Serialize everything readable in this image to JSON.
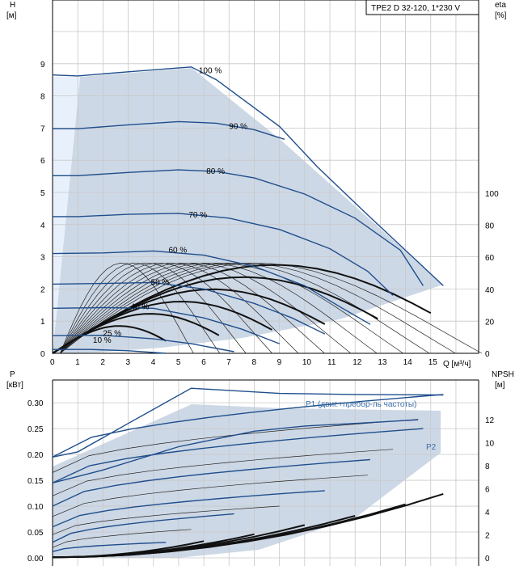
{
  "chart_data": [
    {
      "type": "line",
      "title": "TPE2 D 32-120, 1*230 V",
      "ylabel": "H",
      "ylabel_unit": "[м]",
      "y2label": "eta",
      "y2label_unit": "[%]",
      "xlabel": "Q [м³/ч]",
      "xlim": [
        0,
        16
      ],
      "ylim": [
        0,
        11
      ],
      "y2lim": [
        0,
        100
      ],
      "x_ticks": [
        "0",
        "1",
        "2",
        "3",
        "4",
        "5",
        "6",
        "7",
        "8",
        "9",
        "10",
        "11",
        "12",
        "13",
        "14",
        "15"
      ],
      "y_ticks": [
        "0",
        "1",
        "2",
        "3",
        "4",
        "5",
        "6",
        "7",
        "8",
        "9"
      ],
      "y2_ticks": [
        "0",
        "20",
        "40",
        "60",
        "80",
        "100"
      ],
      "grid": true,
      "series": [
        {
          "name": "100 %",
          "points": [
            [
              0,
              8.65
            ],
            [
              1,
              8.62
            ],
            [
              3,
              8.75
            ],
            [
              5.5,
              8.9
            ],
            [
              6.5,
              8.5
            ],
            [
              9,
              7.05
            ],
            [
              10.5,
              5.8
            ],
            [
              12.5,
              4.3
            ],
            [
              14,
              3.2
            ],
            [
              15.5,
              2.1
            ]
          ]
        },
        {
          "name": "90 %",
          "points": [
            [
              0,
              6.98
            ],
            [
              1,
              6.98
            ],
            [
              3,
              7.1
            ],
            [
              5,
              7.2
            ],
            [
              6.5,
              7.15
            ],
            [
              8,
              6.95
            ],
            [
              9.2,
              6.65
            ]
          ]
        },
        {
          "name": "80 %",
          "points": [
            [
              0,
              5.52
            ],
            [
              1,
              5.52
            ],
            [
              3,
              5.62
            ],
            [
              5,
              5.7
            ],
            [
              6.5,
              5.65
            ],
            [
              8,
              5.45
            ],
            [
              10,
              4.95
            ],
            [
              12,
              4.2
            ],
            [
              13.8,
              3.2
            ],
            [
              14.7,
              2.1
            ]
          ]
        },
        {
          "name": "70 %",
          "points": [
            [
              0,
              4.25
            ],
            [
              1,
              4.25
            ],
            [
              3,
              4.32
            ],
            [
              5,
              4.35
            ],
            [
              7,
              4.2
            ],
            [
              9,
              3.85
            ],
            [
              11,
              3.25
            ],
            [
              12.5,
              2.55
            ],
            [
              13.5,
              1.8
            ]
          ]
        },
        {
          "name": "60 %",
          "points": [
            [
              0,
              3.1
            ],
            [
              2,
              3.12
            ],
            [
              4,
              3.18
            ],
            [
              6,
              3.05
            ],
            [
              8,
              2.7
            ],
            [
              10,
              2.1
            ],
            [
              11.5,
              1.4
            ],
            [
              12.6,
              0.9
            ]
          ]
        },
        {
          "name": "50 %",
          "points": [
            [
              0,
              2.15
            ],
            [
              2,
              2.17
            ],
            [
              4,
              2.2
            ],
            [
              6,
              2.0
            ],
            [
              8,
              1.55
            ],
            [
              9.5,
              1.1
            ],
            [
              10.8,
              0.6
            ]
          ]
        },
        {
          "name": "40 %",
          "points": [
            [
              0,
              1.4
            ],
            [
              2,
              1.42
            ],
            [
              4,
              1.4
            ],
            [
              6,
              1.1
            ],
            [
              7.5,
              0.75
            ],
            [
              9,
              0.3
            ]
          ]
        },
        {
          "name": "25 %",
          "points": [
            [
              0,
              0.55
            ],
            [
              2,
              0.56
            ],
            [
              4,
              0.45
            ],
            [
              5.5,
              0.3
            ],
            [
              7.2,
              0.05
            ]
          ]
        },
        {
          "name": "10 %",
          "points": [
            [
              0,
              0.12
            ],
            [
              1.5,
              0.12
            ],
            [
              3,
              0.08
            ],
            [
              4.5,
              0.0
            ]
          ]
        }
      ],
      "labels": [
        "100 %",
        "90 %",
        "80 %",
        "70 %",
        "60 %",
        "50 %",
        "40 %",
        "25 %",
        "10 %"
      ]
    },
    {
      "type": "line",
      "ylabel": "P",
      "ylabel_unit": "[кВт]",
      "y2label": "NPSH",
      "y2label_unit": "[м]",
      "xlim": [
        0,
        16
      ],
      "ylim": [
        0,
        0.34
      ],
      "y2lim": [
        0,
        14
      ],
      "y_ticks": [
        "0.00",
        "0.05",
        "0.10",
        "0.15",
        "0.20",
        "0.25",
        "0.30"
      ],
      "y2_ticks": [
        "0",
        "2",
        "4",
        "6",
        "8",
        "10",
        "12"
      ],
      "grid": true,
      "series": [
        {
          "name": "P1 (двиг.+преобр-ль частоты)",
          "points": [
            [
              0,
              0.195
            ],
            [
              1,
              0.205
            ],
            [
              3,
              0.26
            ],
            [
              5.5,
              0.328
            ],
            [
              9,
              0.318
            ],
            [
              12,
              0.316
            ],
            [
              15.5,
              0.315
            ]
          ]
        },
        {
          "name": "P2",
          "points": [
            [
              0,
              0.145
            ],
            [
              2,
              0.17
            ],
            [
              5,
              0.215
            ],
            [
              8,
              0.245
            ],
            [
              10,
              0.255
            ],
            [
              12,
              0.26
            ],
            [
              14.5,
              0.267
            ]
          ]
        }
      ],
      "labels": [
        "P1 (двиг.+преобр-ль частоты)",
        "P2"
      ]
    }
  ]
}
